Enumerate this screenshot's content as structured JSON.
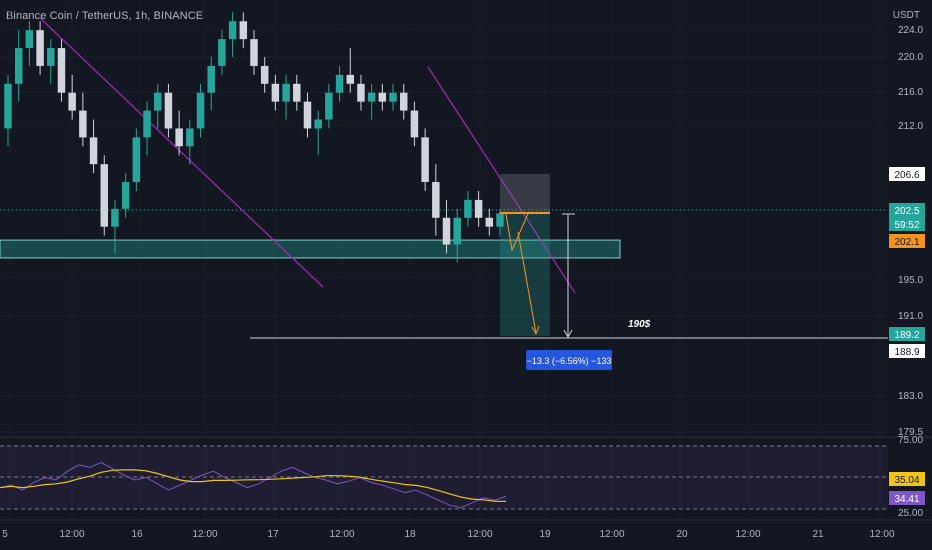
{
  "header": {
    "symbol": "Binance Coin / TetherUS, 1h, BINANCE"
  },
  "axis": {
    "unit": "USDT"
  },
  "chart_data": {
    "type": "candlestick",
    "price_ticks": [
      "224.0",
      "220.0",
      "216.0",
      "212.0",
      "195.0",
      "191.0",
      "183.0",
      "179.5"
    ],
    "time_ticks": [
      "5",
      "12:00",
      "16",
      "12:00",
      "17",
      "12:00",
      "18",
      "12:00",
      "19",
      "12:00",
      "20",
      "12:00",
      "21",
      "12:00"
    ],
    "y_range": [
      176,
      225
    ],
    "labels": {
      "level_top": "206.6",
      "last_price": "202.5",
      "countdown": "59:52",
      "entry": "202.1",
      "target": "189.2",
      "level_bottom": "188.9"
    },
    "annotation_text": "190$",
    "measure_label": "−13.3 (−6.56%) −133",
    "support_zone": [
      197.5,
      199.5
    ],
    "target_line": 188.9,
    "trendlines": [
      {
        "from": [
          "day 16 start",
          224.5
        ],
        "to": [
          "day 17 mid",
          194.0
        ]
      },
      {
        "from": [
          "day 18 start",
          221.0
        ],
        "to": [
          "day 19",
          193.5
        ]
      }
    ],
    "candles": [
      {
        "o": 212,
        "h": 218,
        "l": 210,
        "c": 217
      },
      {
        "o": 217,
        "h": 223,
        "l": 215,
        "c": 221
      },
      {
        "o": 221,
        "h": 224,
        "l": 219,
        "c": 223
      },
      {
        "o": 223,
        "h": 224,
        "l": 218,
        "c": 219
      },
      {
        "o": 219,
        "h": 222,
        "l": 217,
        "c": 221
      },
      {
        "o": 221,
        "h": 222,
        "l": 215,
        "c": 216
      },
      {
        "o": 216,
        "h": 218,
        "l": 213,
        "c": 214
      },
      {
        "o": 214,
        "h": 216,
        "l": 210,
        "c": 211
      },
      {
        "o": 211,
        "h": 213,
        "l": 207,
        "c": 208
      },
      {
        "o": 208,
        "h": 209,
        "l": 200,
        "c": 201
      },
      {
        "o": 201,
        "h": 204,
        "l": 198,
        "c": 203
      },
      {
        "o": 203,
        "h": 207,
        "l": 202,
        "c": 206
      },
      {
        "o": 206,
        "h": 212,
        "l": 205,
        "c": 211
      },
      {
        "o": 211,
        "h": 215,
        "l": 209,
        "c": 214
      },
      {
        "o": 214,
        "h": 217,
        "l": 212,
        "c": 216
      },
      {
        "o": 216,
        "h": 217,
        "l": 211,
        "c": 212
      },
      {
        "o": 212,
        "h": 214,
        "l": 209,
        "c": 210
      },
      {
        "o": 210,
        "h": 213,
        "l": 208,
        "c": 212
      },
      {
        "o": 212,
        "h": 217,
        "l": 211,
        "c": 216
      },
      {
        "o": 216,
        "h": 220,
        "l": 214,
        "c": 219
      },
      {
        "o": 219,
        "h": 223,
        "l": 218,
        "c": 222
      },
      {
        "o": 222,
        "h": 225,
        "l": 220,
        "c": 224
      },
      {
        "o": 224,
        "h": 225,
        "l": 221,
        "c": 222
      },
      {
        "o": 222,
        "h": 223,
        "l": 218,
        "c": 219
      },
      {
        "o": 219,
        "h": 220,
        "l": 216,
        "c": 217
      },
      {
        "o": 217,
        "h": 218,
        "l": 214,
        "c": 215
      },
      {
        "o": 215,
        "h": 218,
        "l": 213,
        "c": 217
      },
      {
        "o": 217,
        "h": 218,
        "l": 214,
        "c": 215
      },
      {
        "o": 215,
        "h": 216,
        "l": 211,
        "c": 212
      },
      {
        "o": 212,
        "h": 214,
        "l": 209,
        "c": 213
      },
      {
        "o": 213,
        "h": 217,
        "l": 212,
        "c": 216
      },
      {
        "o": 216,
        "h": 219,
        "l": 215,
        "c": 218
      },
      {
        "o": 218,
        "h": 221,
        "l": 216,
        "c": 217
      },
      {
        "o": 217,
        "h": 218,
        "l": 214,
        "c": 215
      },
      {
        "o": 215,
        "h": 217,
        "l": 213,
        "c": 216
      },
      {
        "o": 216,
        "h": 217,
        "l": 214,
        "c": 215
      },
      {
        "o": 215,
        "h": 217,
        "l": 214,
        "c": 216
      },
      {
        "o": 216,
        "h": 217,
        "l": 213,
        "c": 214
      },
      {
        "o": 214,
        "h": 215,
        "l": 210,
        "c": 211
      },
      {
        "o": 211,
        "h": 212,
        "l": 205,
        "c": 206
      },
      {
        "o": 206,
        "h": 208,
        "l": 200,
        "c": 202
      },
      {
        "o": 202,
        "h": 204,
        "l": 198,
        "c": 199
      },
      {
        "o": 199,
        "h": 203,
        "l": 197,
        "c": 202
      },
      {
        "o": 202,
        "h": 205,
        "l": 201,
        "c": 204
      },
      {
        "o": 204,
        "h": 205,
        "l": 201,
        "c": 202
      },
      {
        "o": 202,
        "h": 203,
        "l": 200,
        "c": 201
      },
      {
        "o": 201,
        "h": 203,
        "l": 200,
        "c": 202.5
      }
    ],
    "rsi": {
      "levels": [
        "75.00",
        "50.00",
        "25.00"
      ],
      "current": "35.04",
      "ma_value": "34.41",
      "values": [
        42,
        44,
        40,
        46,
        50,
        48,
        55,
        60,
        58,
        62,
        57,
        52,
        48,
        50,
        45,
        40,
        44,
        48,
        52,
        55,
        50,
        46,
        42,
        45,
        50,
        55,
        58,
        54,
        50,
        48,
        45,
        47,
        50,
        46,
        44,
        41,
        38,
        40,
        36,
        32,
        28,
        26,
        30,
        34,
        32,
        35
      ]
    }
  },
  "colors": {
    "up": "#26a69a",
    "down": "#d1d4dc",
    "trend": "#9c27b0",
    "zone": "#26a69a",
    "rsi_line": "#7e57c2",
    "rsi_ma": "#f0c419",
    "tag_blue": "#2962ff",
    "orange": "#f7931a"
  }
}
